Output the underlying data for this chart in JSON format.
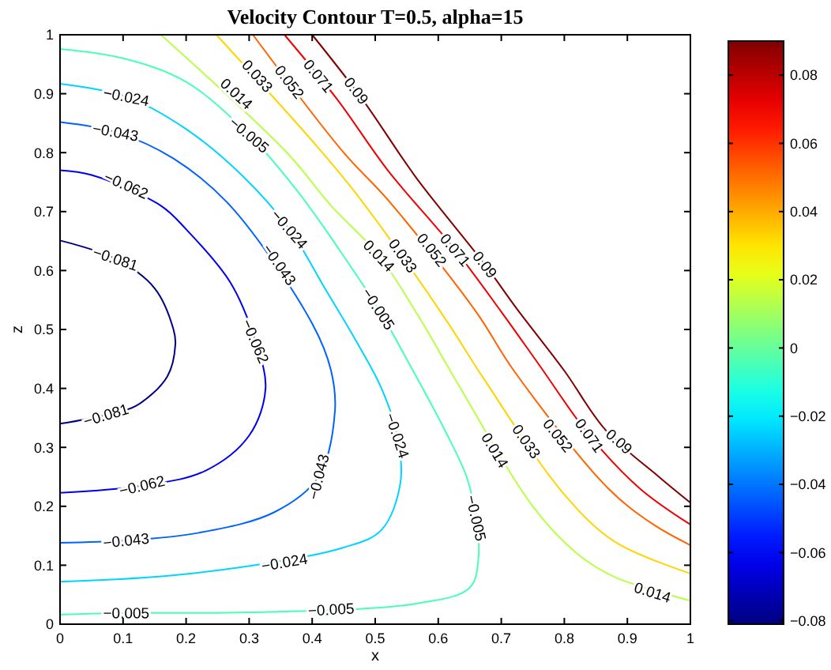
{
  "chart_data": {
    "type": "line",
    "title": "Velocity Contour T=0.5, alpha=15",
    "xlabel": "x",
    "ylabel": "z",
    "xlim": [
      0,
      1
    ],
    "ylim": [
      0,
      1
    ],
    "xticks": [
      0,
      0.1,
      0.2,
      0.3,
      0.4,
      0.5,
      0.6,
      0.7,
      0.8,
      0.9,
      1
    ],
    "yticks": [
      0,
      0.1,
      0.2,
      0.3,
      0.4,
      0.5,
      0.6,
      0.7,
      0.8,
      0.9,
      1
    ],
    "clim": [
      -0.081,
      0.09
    ],
    "cticks": [
      {
        "value": -0.08,
        "label": "−0.08"
      },
      {
        "value": -0.06,
        "label": "−0.06"
      },
      {
        "value": -0.04,
        "label": "−0.04"
      },
      {
        "value": -0.02,
        "label": "−0.02"
      },
      0,
      0.02,
      0.04,
      0.06,
      0.08
    ],
    "series": [
      {
        "color": "#800000",
        "x": [
          0.4,
          0.48,
          0.564,
          0.674,
          0.724,
          0.8,
          0.865,
          0.95,
          1
        ],
        "values": [
          1,
          0.89,
          0.759,
          0.61,
          0.536,
          0.43,
          0.33,
          0.25,
          0.206
        ]
      },
      {
        "color": "#f00000",
        "x": [
          0.356,
          0.44,
          0.52,
          0.627,
          0.7,
          0.76,
          0.84,
          0.92,
          1
        ],
        "values": [
          1,
          0.89,
          0.77,
          0.635,
          0.53,
          0.44,
          0.32,
          0.23,
          0.169
        ]
      },
      {
        "color": "#ff6400",
        "x": [
          0.306,
          0.45,
          0.52,
          0.66,
          0.72,
          0.87,
          0.94,
          1
        ],
        "values": [
          1,
          0.8,
          0.72,
          0.53,
          0.43,
          0.23,
          0.17,
          0.134
        ]
      },
      {
        "color": "#ffd400",
        "x": [
          0.248,
          0.4,
          0.47,
          0.61,
          0.67,
          0.8,
          0.88,
          1
        ],
        "values": [
          1,
          0.82,
          0.73,
          0.52,
          0.42,
          0.22,
          0.14,
          0.086
        ]
      },
      {
        "color": "#b8ff47",
        "x": [
          0.16,
          0.36,
          0.43,
          0.506,
          0.57,
          0.63,
          0.75,
          0.82,
          0.88,
          1
        ],
        "values": [
          1,
          0.8,
          0.71,
          0.625,
          0.52,
          0.41,
          0.2,
          0.12,
          0.08,
          0.04
        ]
      },
      {
        "color": "#47ffb8",
        "x": [
          0,
          0.1,
          0.2,
          0.3,
          0.38,
          0.44,
          0.505,
          0.56,
          0.61,
          0.645,
          0.66,
          0.664,
          0.65,
          0.565,
          0.3,
          0.105,
          0
        ],
        "values": [
          0.976,
          0.96,
          0.92,
          0.83,
          0.73,
          0.64,
          0.535,
          0.43,
          0.33,
          0.25,
          0.18,
          0.115,
          0.062,
          0.035,
          0.02,
          0.019,
          0.016
        ]
      },
      {
        "color": "#00d4ff",
        "x": [
          0,
          0.105,
          0.2,
          0.29,
          0.364,
          0.42,
          0.47,
          0.51,
          0.535,
          0.54,
          0.51,
          0.45,
          0.2,
          0
        ],
        "values": [
          0.917,
          0.895,
          0.84,
          0.76,
          0.67,
          0.57,
          0.48,
          0.4,
          0.32,
          0.24,
          0.16,
          0.13,
          0.085,
          0.072
        ]
      },
      {
        "color": "#0063ff",
        "x": [
          0,
          0.088,
          0.18,
          0.27,
          0.4,
          0.43,
          0.436,
          0.41,
          0.34,
          0.22,
          0.105,
          0
        ],
        "values": [
          0.852,
          0.835,
          0.79,
          0.71,
          0.51,
          0.43,
          0.36,
          0.25,
          0.19,
          0.155,
          0.142,
          0.138
        ]
      },
      {
        "color": "#0000f0",
        "x": [
          0,
          0.05,
          0.16,
          0.2,
          0.27,
          0.31,
          0.326,
          0.3,
          0.23,
          0.13,
          0
        ],
        "values": [
          0.77,
          0.762,
          0.71,
          0.67,
          0.58,
          0.48,
          0.4,
          0.32,
          0.26,
          0.235,
          0.223
        ]
      },
      {
        "color": "#000080",
        "x": [
          0,
          0.088,
          0.15,
          0.18,
          0.183,
          0.17,
          0.12,
          0.073,
          0
        ],
        "values": [
          0.651,
          0.62,
          0.57,
          0.5,
          0.475,
          0.42,
          0.37,
          0.355,
          0.34
        ]
      }
    ],
    "annotations": [
      {
        "text": "0.09",
        "x": 0.47,
        "y": 0.905
      },
      {
        "text": "0.09",
        "x": 0.674,
        "y": 0.61
      },
      {
        "text": "0.09",
        "x": 0.887,
        "y": 0.31
      },
      {
        "text": "0.071",
        "x": 0.41,
        "y": 0.93
      },
      {
        "text": "0.071",
        "x": 0.627,
        "y": 0.635
      },
      {
        "text": "0.071",
        "x": 0.84,
        "y": 0.32
      },
      {
        "text": "0.052",
        "x": 0.364,
        "y": 0.92
      },
      {
        "text": "0.052",
        "x": 0.59,
        "y": 0.635
      },
      {
        "text": "0.052",
        "x": 0.79,
        "y": 0.32
      },
      {
        "text": "0.033",
        "x": 0.313,
        "y": 0.93
      },
      {
        "text": "0.033",
        "x": 0.544,
        "y": 0.625
      },
      {
        "text": "0.033",
        "x": 0.74,
        "y": 0.31
      },
      {
        "text": "0.014",
        "x": 0.28,
        "y": 0.9
      },
      {
        "text": "0.014",
        "x": 0.506,
        "y": 0.625
      },
      {
        "text": "0.014",
        "x": 0.69,
        "y": 0.295
      },
      {
        "text": "0.014",
        "x": 0.94,
        "y": 0.054
      },
      {
        "text": "−0.005",
        "x": 0.3,
        "y": 0.83
      },
      {
        "text": "−0.005",
        "x": 0.505,
        "y": 0.535
      },
      {
        "text": "−0.005",
        "x": 0.66,
        "y": 0.18
      },
      {
        "text": "−0.005",
        "x": 0.43,
        "y": 0.025
      },
      {
        "text": "−0.005",
        "x": 0.105,
        "y": 0.019
      },
      {
        "text": "−0.024",
        "x": 0.105,
        "y": 0.895
      },
      {
        "text": "−0.024",
        "x": 0.364,
        "y": 0.67
      },
      {
        "text": "−0.024",
        "x": 0.535,
        "y": 0.32
      },
      {
        "text": "−0.024",
        "x": 0.356,
        "y": 0.105
      },
      {
        "text": "−0.043",
        "x": 0.088,
        "y": 0.835
      },
      {
        "text": "−0.043",
        "x": 0.348,
        "y": 0.61
      },
      {
        "text": "−0.043",
        "x": 0.41,
        "y": 0.25
      },
      {
        "text": "−0.043",
        "x": 0.105,
        "y": 0.142
      },
      {
        "text": "−0.062",
        "x": 0.105,
        "y": 0.745
      },
      {
        "text": "−0.062",
        "x": 0.31,
        "y": 0.48
      },
      {
        "text": "−0.062",
        "x": 0.13,
        "y": 0.235
      },
      {
        "text": "−0.081",
        "x": 0.088,
        "y": 0.62
      },
      {
        "text": "−0.081",
        "x": 0.073,
        "y": 0.355
      }
    ]
  }
}
